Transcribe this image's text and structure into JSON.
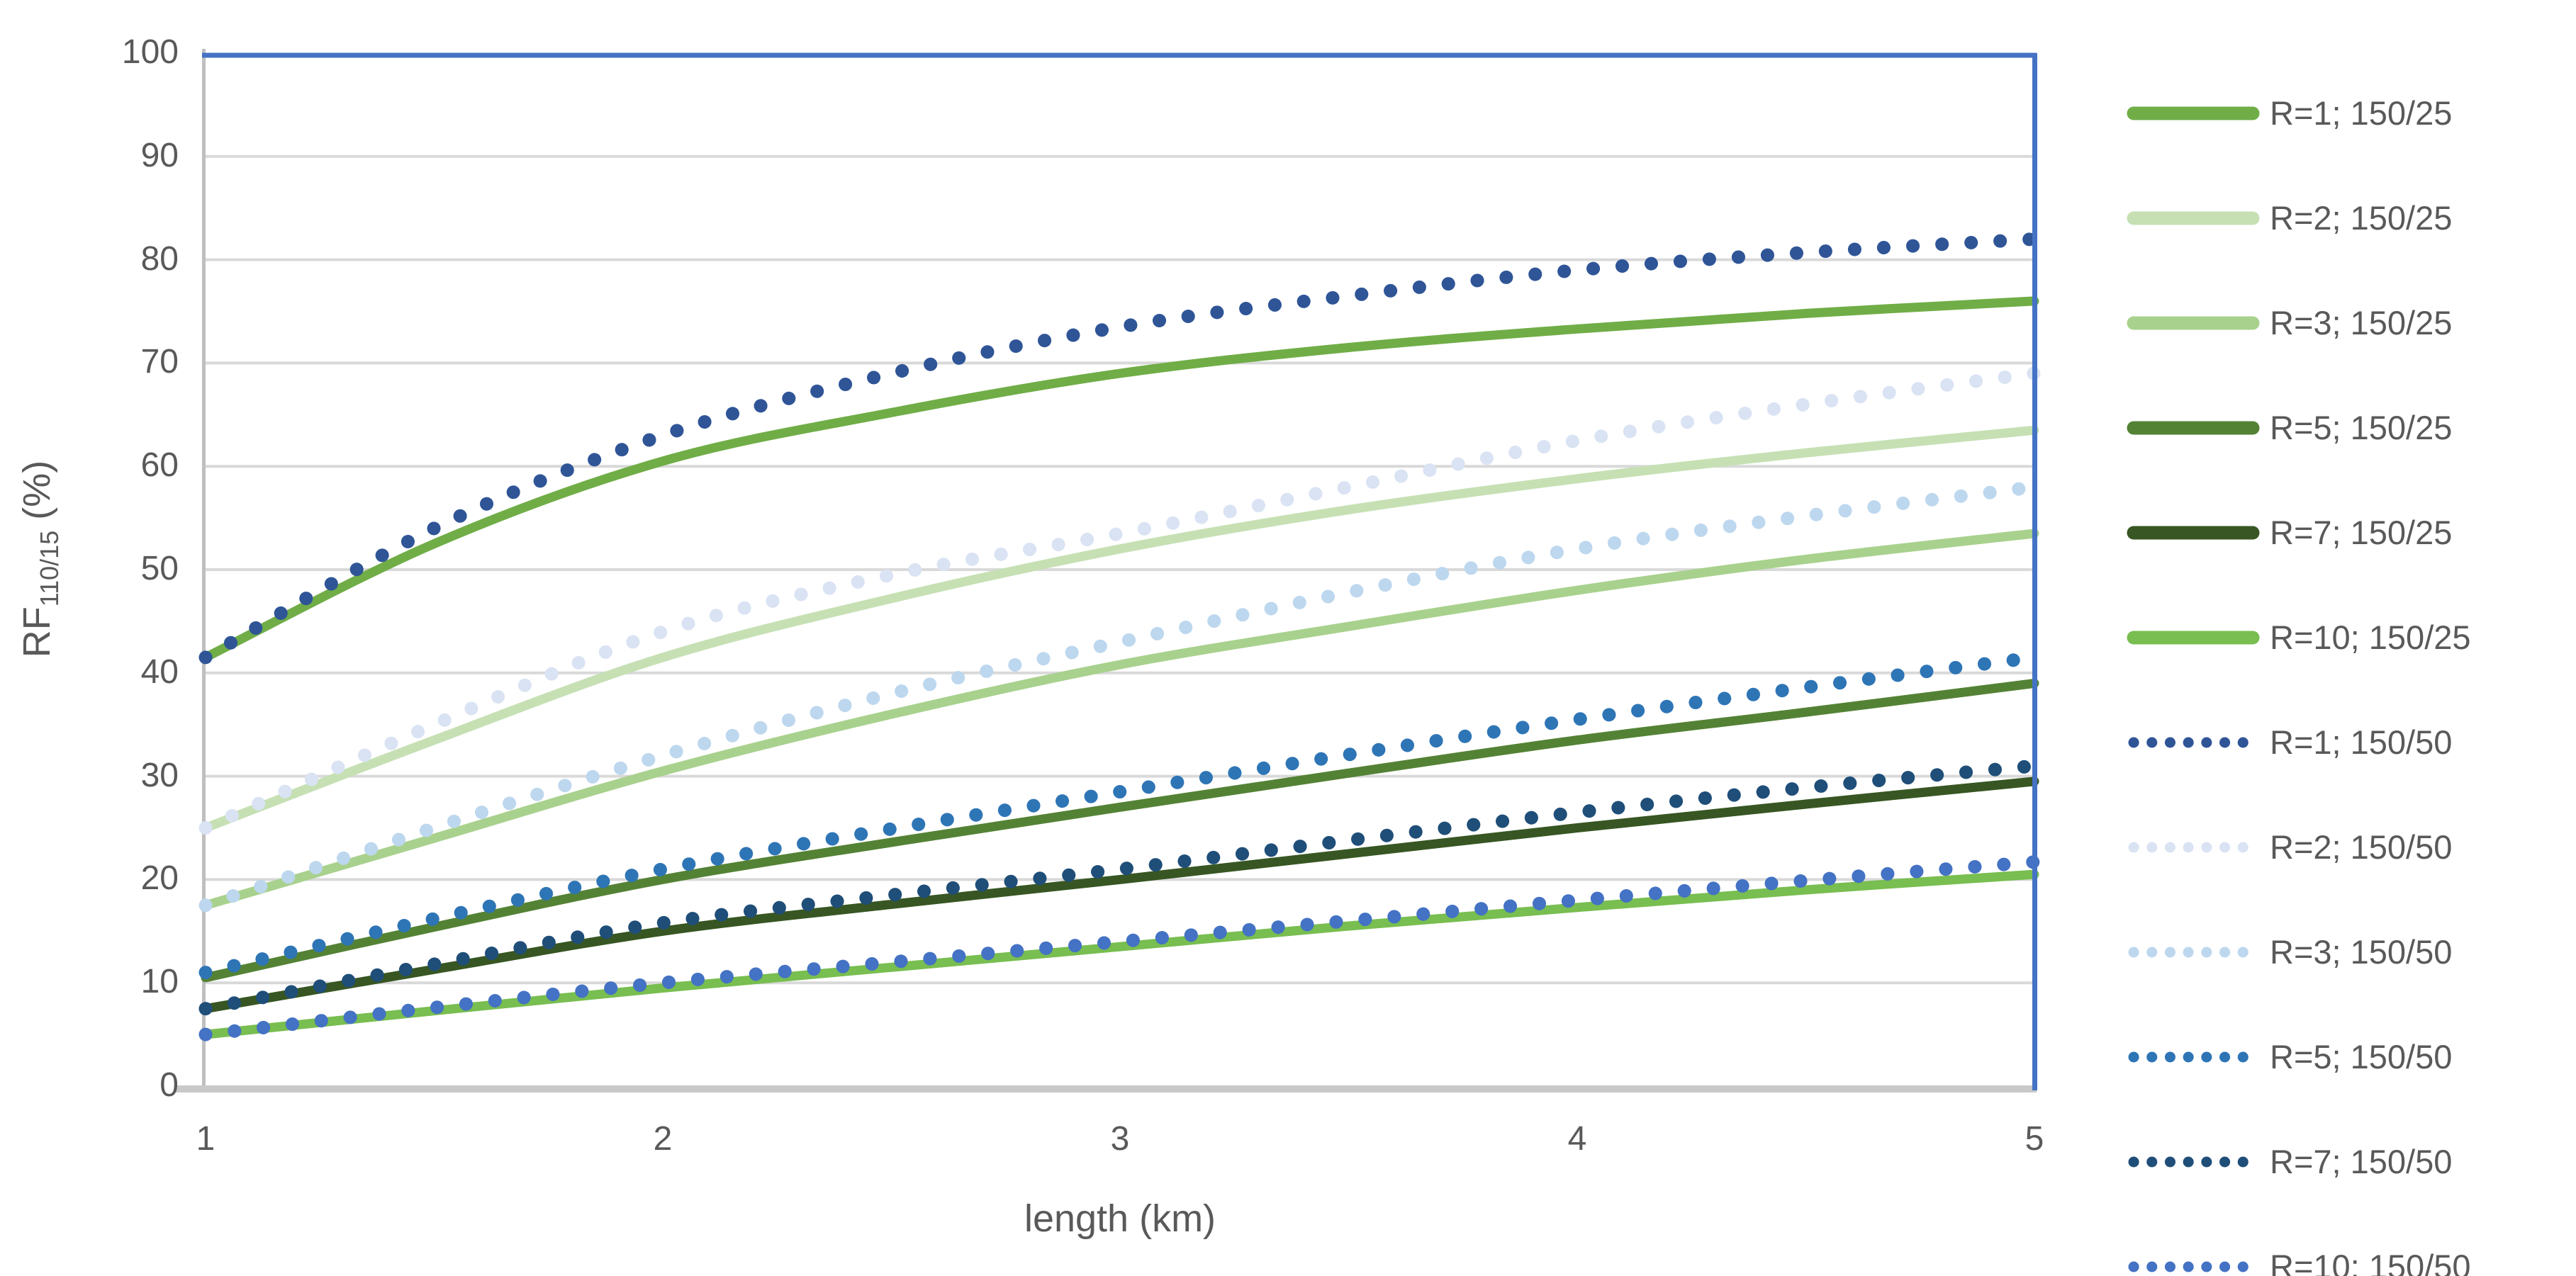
{
  "chart_data": {
    "type": "line",
    "title": "",
    "xlabel": "length (km)",
    "ylabel_main": "RF",
    "ylabel_sub": "110/15",
    "ylabel_unit": " (%)",
    "xlim": [
      1,
      5
    ],
    "ylim": [
      0,
      100
    ],
    "grid": true,
    "legend_position": "right",
    "x": [
      1,
      1.5,
      2,
      2.5,
      3,
      3.5,
      4,
      4.5,
      5
    ],
    "x_tick_values": [
      1,
      2,
      3,
      4,
      5
    ],
    "x_tick_labels": [
      "1",
      "2",
      "3",
      "4",
      "5"
    ],
    "y_tick_values": [
      0,
      10,
      20,
      30,
      40,
      50,
      60,
      70,
      80,
      90,
      100
    ],
    "y_tick_labels": [
      "0",
      "10",
      "20",
      "30",
      "40",
      "50",
      "60",
      "70",
      "80",
      "90",
      "100"
    ],
    "series": [
      {
        "name": "R=1; 150/25",
        "style": "solid",
        "color": "#70AD47",
        "values": [
          41.5,
          52.5,
          60.5,
          65.2,
          69.0,
          71.5,
          73.3,
          74.8,
          76.0
        ]
      },
      {
        "name": "R=2; 150/25",
        "style": "solid",
        "color": "#C6E0B4",
        "values": [
          25.0,
          33.5,
          41.5,
          47.2,
          52.0,
          55.8,
          58.8,
          61.3,
          63.5
        ]
      },
      {
        "name": "R=3; 150/25",
        "style": "solid",
        "color": "#A9D18E",
        "values": [
          17.5,
          24.0,
          30.5,
          36.0,
          40.8,
          44.5,
          48.0,
          51.0,
          53.5
        ]
      },
      {
        "name": "R=5; 150/25",
        "style": "solid",
        "color": "#548235",
        "values": [
          10.5,
          15.4,
          20.0,
          23.6,
          27.0,
          30.3,
          33.5,
          36.2,
          39.0
        ]
      },
      {
        "name": "R=7; 150/25",
        "style": "solid",
        "color": "#375623",
        "values": [
          7.5,
          11.3,
          15.0,
          17.6,
          20.0,
          22.5,
          25.0,
          27.3,
          29.5
        ]
      },
      {
        "name": "R=10; 150/25",
        "style": "solid",
        "color": "#78BE50",
        "values": [
          5.0,
          7.3,
          9.5,
          11.5,
          13.5,
          15.5,
          17.3,
          19.0,
          20.5
        ]
      },
      {
        "name": "R=1; 150/50",
        "style": "dotted",
        "color": "#2F5597",
        "values": [
          41.5,
          54.0,
          63.0,
          69.0,
          73.5,
          76.5,
          79.0,
          80.7,
          82.0
        ]
      },
      {
        "name": "R=2; 150/50",
        "style": "dotted",
        "color": "#DAE3F3",
        "values": [
          25.0,
          35.0,
          44.0,
          49.5,
          53.5,
          58.0,
          62.5,
          66.0,
          69.0
        ]
      },
      {
        "name": "R=3; 150/50",
        "style": "dotted",
        "color": "#BDD7EE",
        "values": [
          17.5,
          25.0,
          32.0,
          38.0,
          43.0,
          47.8,
          52.0,
          55.2,
          58.0
        ]
      },
      {
        "name": "R=5; 150/50",
        "style": "dotted",
        "color": "#2E75B6",
        "values": [
          11.0,
          16.2,
          21.0,
          24.9,
          28.5,
          32.1,
          35.5,
          38.6,
          41.5
        ]
      },
      {
        "name": "R=7; 150/50",
        "style": "dotted",
        "color": "#1F4E79",
        "values": [
          7.5,
          11.8,
          15.8,
          18.5,
          21.0,
          23.8,
          26.5,
          28.9,
          31.0
        ]
      },
      {
        "name": "R=10; 150/50",
        "style": "dotted",
        "color": "#4472C4",
        "values": [
          5.0,
          7.6,
          10.0,
          12.0,
          14.0,
          16.0,
          18.0,
          19.9,
          21.7
        ]
      }
    ],
    "colors": {
      "gridline": "#D9D9D9",
      "axis_left": "#BFBFBF",
      "axis_bottom": "#C9C9C9",
      "plot_border": "#4472C4",
      "text": "#595959",
      "background": "#FFFFFF"
    }
  }
}
